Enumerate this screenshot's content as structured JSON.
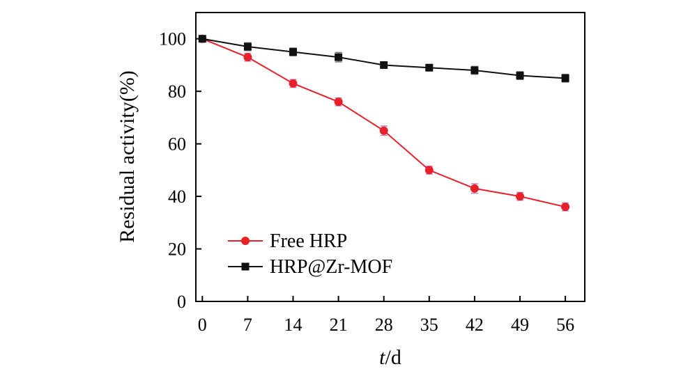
{
  "chart_data": {
    "type": "line",
    "x": [
      0,
      7,
      14,
      21,
      28,
      35,
      42,
      49,
      56
    ],
    "xlabel_italic": "t",
    "xlabel_rest": "/d",
    "ylabel": "Residual activity(%)",
    "xlim": [
      -1,
      59
    ],
    "ylim": [
      0,
      110
    ],
    "yticks": [
      0,
      20,
      40,
      60,
      80,
      100
    ],
    "legend_position": "bottom-left",
    "grid": false,
    "series": [
      {
        "name": "Free HRP",
        "values": [
          100,
          93,
          83,
          76,
          65,
          50,
          43,
          40,
          36
        ],
        "errors": [
          1.2,
          1.5,
          1.5,
          1.5,
          1.8,
          1.5,
          1.8,
          1.5,
          1.5
        ],
        "color": "#e8202a",
        "errorColor": "#c080c0",
        "marker": "circle"
      },
      {
        "name": "HRP@Zr-MOF",
        "values": [
          100,
          97,
          95,
          93,
          90,
          89,
          88,
          86,
          85
        ],
        "errors": [
          1.2,
          1.5,
          1.5,
          1.8,
          1.2,
          1.2,
          1.5,
          1.5,
          1.5
        ],
        "color": "#111111",
        "errorColor": "#777777",
        "marker": "square"
      }
    ]
  }
}
